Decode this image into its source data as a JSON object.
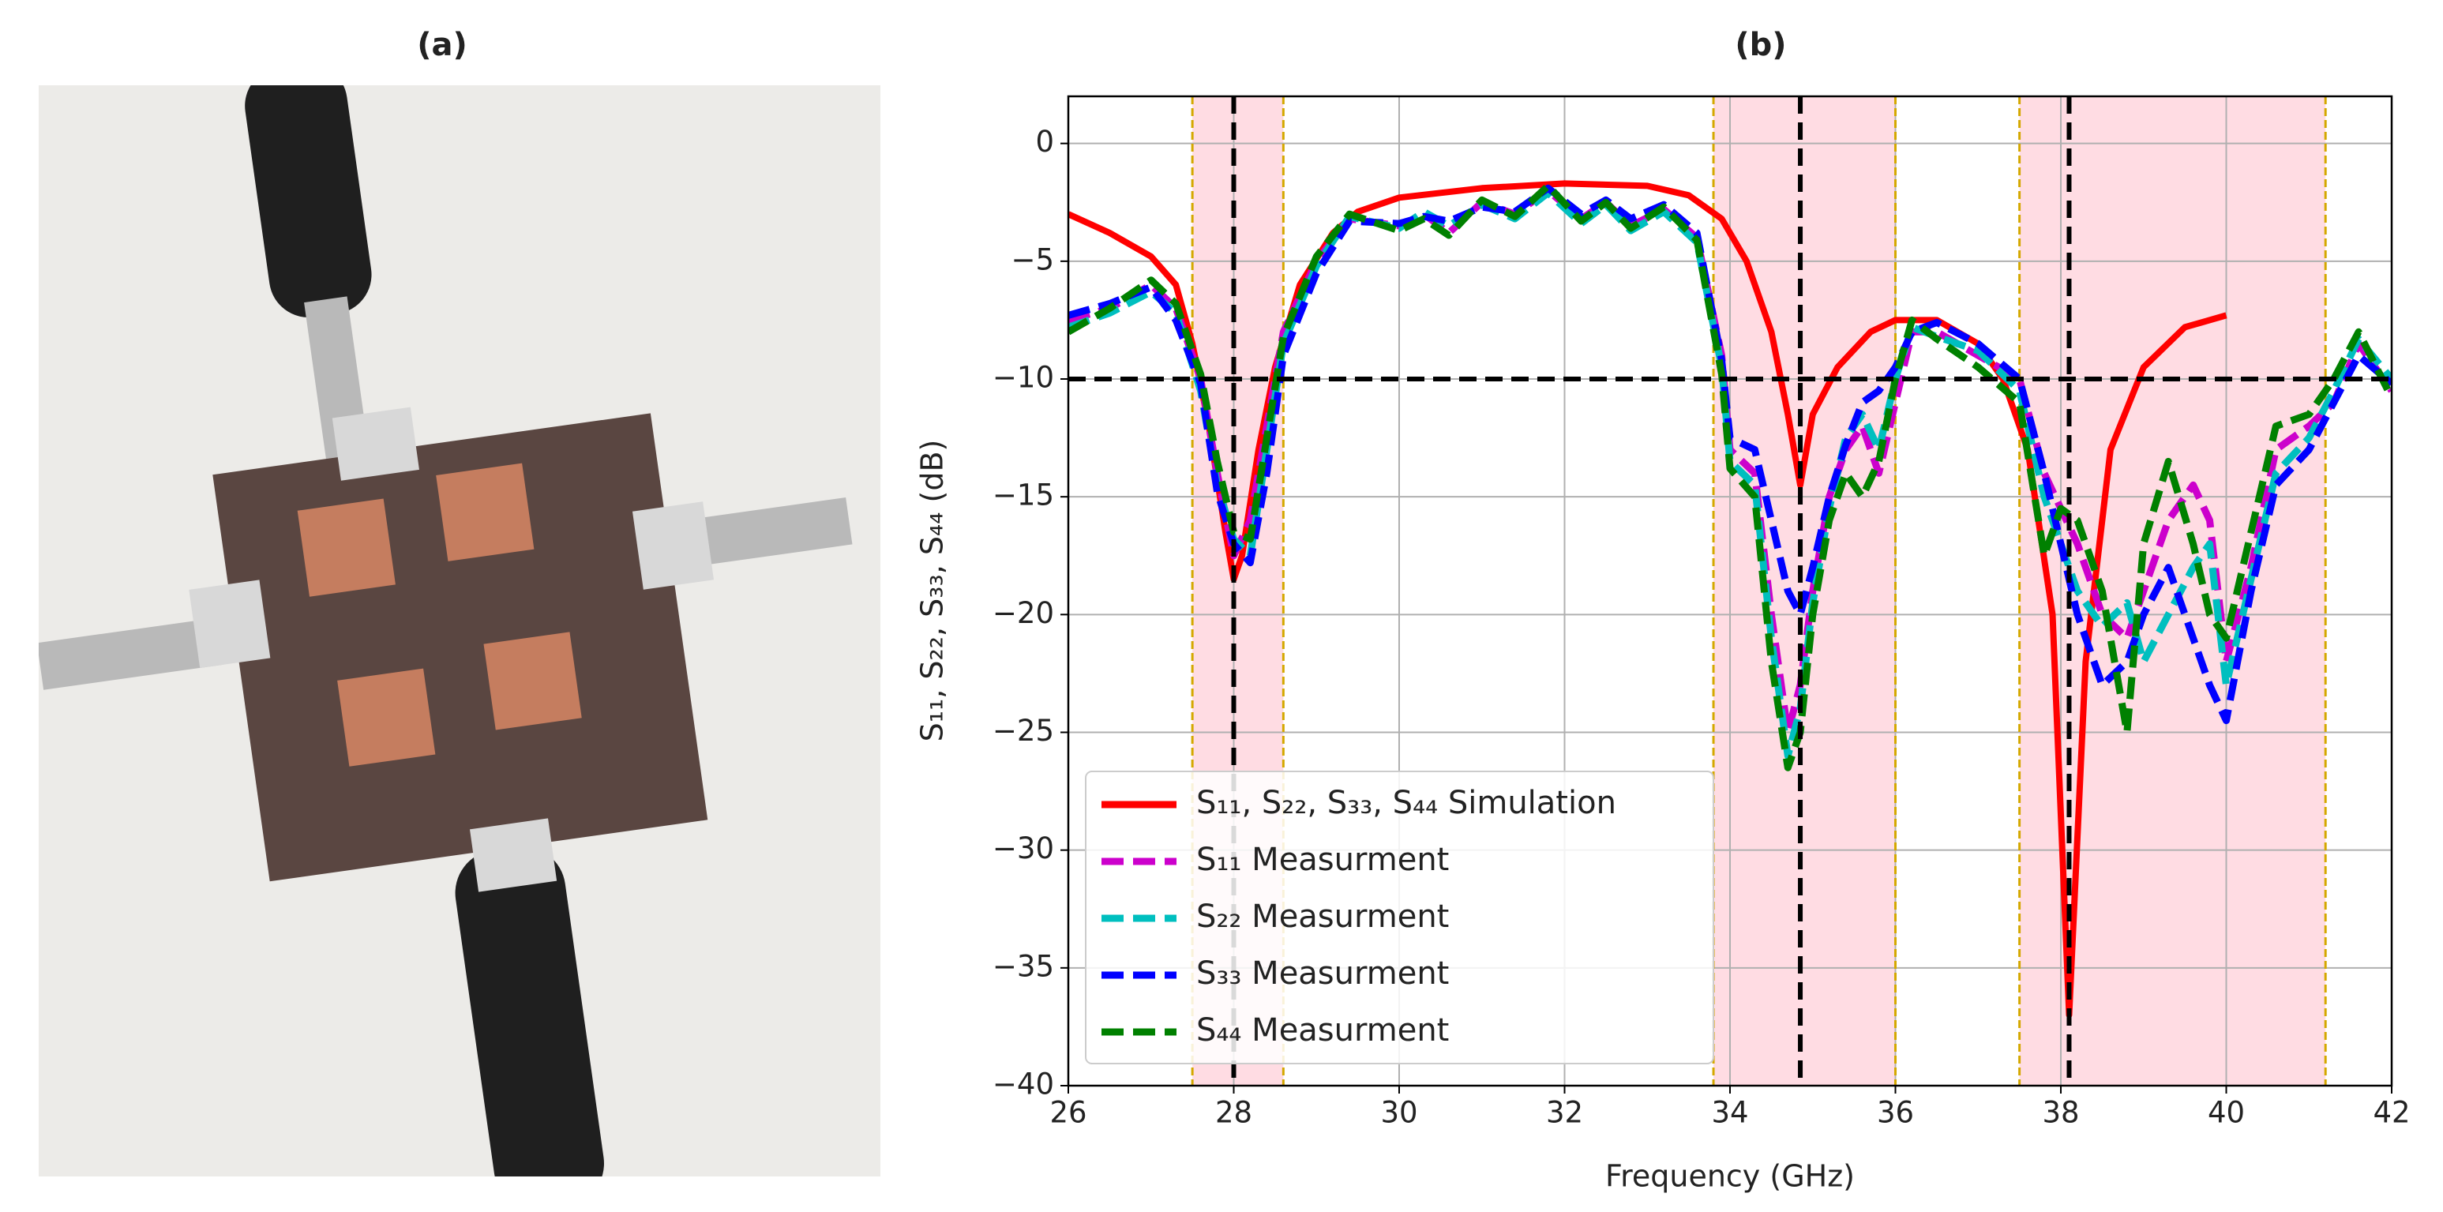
{
  "photo_title": "(a)",
  "chart_data": {
    "type": "line",
    "title": "(b)",
    "xlabel": "Frequency (GHz)",
    "ylabel": "S₁₁, S₂₂, S₃₃, S₄₄ (dB)",
    "xlim": [
      26,
      42
    ],
    "ylim": [
      -40,
      2
    ],
    "xticks": [
      26,
      28,
      30,
      32,
      34,
      36,
      38,
      40,
      42
    ],
    "yticks": [
      0,
      {
        "value": -5,
        "label": "−5"
      },
      {
        "value": -10,
        "label": "−10"
      },
      {
        "value": -15,
        "label": "−15"
      },
      {
        "value": -20,
        "label": "−20"
      },
      {
        "value": -25,
        "label": "−25"
      },
      {
        "value": -30,
        "label": "−30"
      },
      {
        "value": -35,
        "label": "−35"
      },
      {
        "value": -40,
        "label": "−40"
      }
    ],
    "grid": true,
    "legend": "lower left",
    "bands": [
      [
        27.5,
        28.6
      ],
      [
        33.8,
        36.0
      ],
      [
        37.5,
        41.2
      ]
    ],
    "band_color": "#ffd6de",
    "band_edge_color": "#d4a800",
    "vlines": [
      28,
      34.85,
      38.1
    ],
    "hline": -10,
    "series": [
      {
        "name": "S₁₁, S₂₂, S₃₃, S₄₄ Simulation",
        "color": "#ff0000",
        "dashed": false,
        "x": [
          26,
          26.5,
          27,
          27.3,
          27.5,
          27.7,
          27.9,
          28,
          28.1,
          28.3,
          28.5,
          28.8,
          29.2,
          29.5,
          30,
          31,
          32,
          33,
          33.5,
          33.9,
          34.2,
          34.5,
          34.7,
          34.85,
          35,
          35.3,
          35.7,
          36,
          36.5,
          37,
          37.3,
          37.6,
          37.9,
          38.1,
          38.3,
          38.6,
          39,
          39.5,
          40
        ],
        "values": [
          -3,
          -3.8,
          -4.8,
          -6,
          -8.5,
          -12,
          -16.5,
          -18.5,
          -17.5,
          -13,
          -9.5,
          -6,
          -3.8,
          -2.9,
          -2.3,
          -1.9,
          -1.7,
          -1.8,
          -2.2,
          -3.2,
          -5,
          -8,
          -11.5,
          -14.5,
          -11.5,
          -9.5,
          -8,
          -7.5,
          -7.5,
          -8.5,
          -10,
          -13,
          -20,
          -37,
          -22,
          -13,
          -9.5,
          -7.8,
          -7.3
        ]
      },
      {
        "name": "S₁₁ Measurment",
        "color": "#cc00cc",
        "dashed": true,
        "x": [
          26,
          26.5,
          27,
          27.3,
          27.6,
          27.8,
          28,
          28.2,
          28.4,
          28.6,
          29,
          29.4,
          30,
          30.3,
          30.6,
          31,
          31.4,
          31.8,
          32.2,
          32.5,
          32.8,
          33.2,
          33.6,
          33.9,
          34,
          34.3,
          34.5,
          34.7,
          34.85,
          35,
          35.2,
          35.4,
          35.6,
          35.8,
          36,
          36.2,
          36.5,
          37,
          37.5,
          37.8,
          38,
          38.2,
          38.5,
          38.8,
          39,
          39.3,
          39.6,
          39.8,
          40,
          40.3,
          40.6,
          41,
          41.3,
          41.6,
          42
        ],
        "values": [
          -7.5,
          -7,
          -6,
          -7,
          -10,
          -14,
          -17.5,
          -16,
          -12,
          -8,
          -5,
          -3.2,
          -3.5,
          -3,
          -3.8,
          -2.5,
          -3,
          -2,
          -3.2,
          -2.5,
          -3.5,
          -2.8,
          -4,
          -9,
          -13,
          -14,
          -20,
          -25,
          -23,
          -19,
          -15,
          -13,
          -12,
          -14,
          -11,
          -8,
          -8,
          -9,
          -10,
          -14,
          -15.5,
          -17,
          -20,
          -21,
          -19,
          -16,
          -14.5,
          -16,
          -22,
          -18,
          -13,
          -12,
          -11,
          -8.5,
          -10.5
        ]
      },
      {
        "name": "S₂₂ Measurment",
        "color": "#00bfbf",
        "dashed": true,
        "x": [
          26,
          26.5,
          27,
          27.3,
          27.6,
          27.8,
          28,
          28.2,
          28.4,
          28.6,
          29,
          29.4,
          30,
          30.3,
          30.6,
          31,
          31.4,
          31.8,
          32.2,
          32.5,
          32.8,
          33.2,
          33.6,
          33.9,
          34,
          34.3,
          34.5,
          34.7,
          34.85,
          35,
          35.2,
          35.4,
          35.6,
          35.8,
          36,
          36.2,
          36.5,
          37,
          37.5,
          37.8,
          38,
          38.2,
          38.5,
          38.8,
          39,
          39.3,
          39.6,
          39.8,
          40,
          40.3,
          40.6,
          41,
          41.3,
          41.6,
          42
        ],
        "values": [
          -7.8,
          -7.2,
          -6.3,
          -7.2,
          -10.5,
          -14.5,
          -16.8,
          -17.5,
          -13,
          -8.5,
          -5.2,
          -3.1,
          -3.6,
          -2.9,
          -3.5,
          -2.6,
          -3.2,
          -2.1,
          -3.4,
          -2.6,
          -3.7,
          -2.9,
          -4.2,
          -9.5,
          -13.5,
          -14.5,
          -21,
          -26,
          -24,
          -19.5,
          -15.5,
          -12.5,
          -11.5,
          -13,
          -10,
          -7.8,
          -8.2,
          -8.8,
          -10.5,
          -15,
          -17,
          -19,
          -20.5,
          -19.5,
          -22,
          -20,
          -18,
          -17,
          -23,
          -18.5,
          -14,
          -12.5,
          -10.5,
          -8.3,
          -10
        ]
      },
      {
        "name": "S₃₃ Measurment",
        "color": "#0000ff",
        "dashed": true,
        "x": [
          26,
          26.5,
          27,
          27.3,
          27.6,
          27.8,
          28,
          28.2,
          28.4,
          28.6,
          29,
          29.4,
          30,
          30.3,
          30.6,
          31,
          31.4,
          31.8,
          32.2,
          32.5,
          32.8,
          33.2,
          33.6,
          33.9,
          34,
          34.3,
          34.5,
          34.7,
          34.85,
          35,
          35.2,
          35.4,
          35.6,
          35.8,
          36,
          36.2,
          36.5,
          37,
          37.5,
          37.8,
          38,
          38.2,
          38.5,
          38.8,
          39,
          39.3,
          39.6,
          39.8,
          40,
          40.3,
          40.6,
          41,
          41.3,
          41.6,
          42
        ],
        "values": [
          -7.3,
          -6.8,
          -6.1,
          -7.5,
          -10.2,
          -14.8,
          -17,
          -17.8,
          -14,
          -9,
          -5.5,
          -3.3,
          -3.4,
          -3.1,
          -3.3,
          -2.7,
          -2.9,
          -1.9,
          -3,
          -2.4,
          -3.2,
          -2.6,
          -3.8,
          -9.2,
          -12.5,
          -13,
          -16,
          -19,
          -20,
          -18,
          -15,
          -12.8,
          -11,
          -10.5,
          -9.5,
          -8,
          -7.6,
          -8.5,
          -10,
          -14,
          -17,
          -20,
          -23,
          -22,
          -20,
          -18,
          -21,
          -23,
          -24.5,
          -19,
          -14.5,
          -13,
          -11,
          -9,
          -10.2
        ]
      },
      {
        "name": "S₄₄ Measurment",
        "color": "#008000",
        "dashed": true,
        "x": [
          26,
          26.5,
          27,
          27.3,
          27.6,
          27.8,
          28,
          28.2,
          28.4,
          28.6,
          29,
          29.4,
          30,
          30.3,
          30.6,
          31,
          31.4,
          31.8,
          32.2,
          32.5,
          32.8,
          33.2,
          33.6,
          33.9,
          34,
          34.3,
          34.5,
          34.7,
          34.85,
          35,
          35.2,
          35.4,
          35.6,
          35.8,
          36,
          36.2,
          36.5,
          37,
          37.5,
          37.8,
          38,
          38.2,
          38.5,
          38.8,
          39,
          39.3,
          39.6,
          39.8,
          40,
          40.3,
          40.6,
          41,
          41.3,
          41.6,
          42
        ],
        "values": [
          -8,
          -7,
          -5.8,
          -6.8,
          -9.8,
          -13.5,
          -16.5,
          -16.8,
          -12.5,
          -8.2,
          -4.8,
          -3,
          -3.7,
          -3.2,
          -3.9,
          -2.4,
          -3.1,
          -1.8,
          -3.3,
          -2.5,
          -3.6,
          -2.7,
          -4.1,
          -9.8,
          -13.8,
          -15,
          -22,
          -26.5,
          -25,
          -20,
          -16,
          -14,
          -15,
          -13.5,
          -10,
          -7.5,
          -8.3,
          -9.5,
          -11,
          -17.5,
          -15.5,
          -16,
          -19,
          -25,
          -17,
          -13.5,
          -17,
          -20,
          -21,
          -16.5,
          -12,
          -11.5,
          -10,
          -8,
          -10.8
        ]
      }
    ]
  }
}
